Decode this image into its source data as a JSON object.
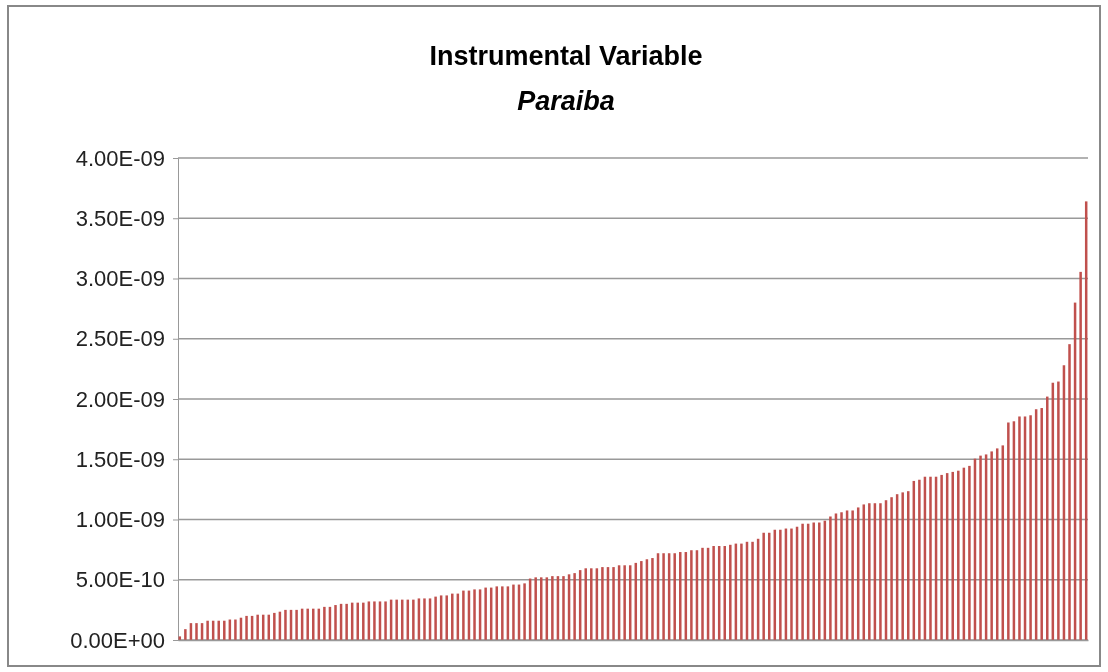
{
  "chart_data": {
    "type": "bar",
    "title": "Instrumental Variable",
    "subtitle": "Paraiba",
    "categories": [
      null,
      null,
      null,
      null,
      null,
      null,
      null,
      null,
      null,
      null,
      null,
      null,
      null,
      null,
      null,
      null,
      null,
      null,
      null,
      null,
      null,
      null,
      null,
      null,
      null,
      null,
      null,
      null,
      null,
      null,
      null,
      null,
      null,
      null,
      null,
      null,
      null,
      null,
      null,
      null,
      null,
      null,
      null,
      null,
      null,
      null,
      null,
      null,
      null,
      null,
      null,
      null,
      null,
      null,
      null,
      null,
      null,
      null,
      null,
      null,
      null,
      null,
      null,
      null,
      null,
      null,
      null,
      null,
      null,
      null,
      null,
      null,
      null,
      null,
      null,
      null,
      null,
      null,
      null,
      null,
      null,
      null,
      null,
      null,
      null,
      null,
      null,
      null,
      null,
      null,
      null,
      null,
      null,
      null,
      null,
      null,
      null,
      null,
      null,
      null,
      null,
      null,
      null,
      null,
      null,
      null,
      null,
      null,
      null,
      null,
      null,
      null,
      null,
      null,
      null,
      null,
      null,
      null,
      null,
      null,
      null,
      null,
      null,
      null,
      null,
      null,
      null,
      null,
      null,
      null,
      null,
      null,
      null,
      null,
      null,
      null,
      null,
      null,
      null,
      null,
      null,
      null,
      null,
      null,
      null,
      null,
      null,
      null,
      null,
      null,
      null,
      null,
      null,
      null,
      null,
      null,
      null,
      null,
      null,
      null,
      null,
      null,
      null,
      null
    ],
    "values": [
      3e-11,
      9e-11,
      1.4e-10,
      1.4e-10,
      1.4e-10,
      1.6e-10,
      1.6e-10,
      1.6e-10,
      1.6e-10,
      1.7e-10,
      1.7e-10,
      1.85e-10,
      2e-10,
      2e-10,
      2.1e-10,
      2.1e-10,
      2.1e-10,
      2.25e-10,
      2.35e-10,
      2.5e-10,
      2.5e-10,
      2.5e-10,
      2.6e-10,
      2.6e-10,
      2.6e-10,
      2.6e-10,
      2.75e-10,
      2.75e-10,
      2.9e-10,
      3e-10,
      3e-10,
      3.1e-10,
      3.1e-10,
      3.1e-10,
      3.2e-10,
      3.2e-10,
      3.2e-10,
      3.2e-10,
      3.35e-10,
      3.35e-10,
      3.35e-10,
      3.35e-10,
      3.35e-10,
      3.45e-10,
      3.45e-10,
      3.45e-10,
      3.6e-10,
      3.7e-10,
      3.7e-10,
      3.85e-10,
      3.85e-10,
      4.1e-10,
      4.1e-10,
      4.2e-10,
      4.2e-10,
      4.35e-10,
      4.35e-10,
      4.45e-10,
      4.45e-10,
      4.45e-10,
      4.6e-10,
      4.6e-10,
      4.7e-10,
      5.1e-10,
      5.2e-10,
      5.2e-10,
      5.2e-10,
      5.3e-10,
      5.3e-10,
      5.3e-10,
      5.45e-10,
      5.55e-10,
      5.8e-10,
      5.95e-10,
      5.95e-10,
      5.95e-10,
      6.05e-10,
      6.05e-10,
      6.05e-10,
      6.2e-10,
      6.2e-10,
      6.2e-10,
      6.4e-10,
      6.55e-10,
      6.7e-10,
      6.8e-10,
      7.2e-10,
      7.2e-10,
      7.2e-10,
      7.2e-10,
      7.3e-10,
      7.3e-10,
      7.45e-10,
      7.45e-10,
      7.65e-10,
      7.65e-10,
      7.8e-10,
      7.8e-10,
      7.8e-10,
      7.9e-10,
      8e-10,
      8e-10,
      8.15e-10,
      8.15e-10,
      8.4e-10,
      8.9e-10,
      8.9e-10,
      9.15e-10,
      9.15e-10,
      9.25e-10,
      9.25e-10,
      9.4e-10,
      9.65e-10,
      9.65e-10,
      9.75e-10,
      9.75e-10,
      9.9e-10,
      1.025e-09,
      1.05e-09,
      1.06e-09,
      1.075e-09,
      1.075e-09,
      1.1e-09,
      1.125e-09,
      1.135e-09,
      1.135e-09,
      1.135e-09,
      1.16e-09,
      1.185e-09,
      1.21e-09,
      1.225e-09,
      1.235e-09,
      1.32e-09,
      1.33e-09,
      1.355e-09,
      1.355e-09,
      1.355e-09,
      1.37e-09,
      1.385e-09,
      1.395e-09,
      1.405e-09,
      1.43e-09,
      1.445e-09,
      1.505e-09,
      1.53e-09,
      1.54e-09,
      1.565e-09,
      1.59e-09,
      1.615e-09,
      1.805e-09,
      1.815e-09,
      1.855e-09,
      1.855e-09,
      1.865e-09,
      1.915e-09,
      1.925e-09,
      2.02e-09,
      2.135e-09,
      2.145e-09,
      2.28e-09,
      2.455e-09,
      2.8e-09,
      3.055e-09,
      3.64e-09
    ],
    "color": "#c0504d",
    "ylim": [
      0,
      4e-09
    ],
    "yticks": [
      {
        "value": 0,
        "label": "0.00E+00"
      },
      {
        "value": 5e-10,
        "label": "5.00E-10"
      },
      {
        "value": 1e-09,
        "label": "1.00E-09"
      },
      {
        "value": 1.5e-09,
        "label": "1.50E-09"
      },
      {
        "value": 2e-09,
        "label": "2.00E-09"
      },
      {
        "value": 2.5e-09,
        "label": "2.50E-09"
      },
      {
        "value": 3e-09,
        "label": "3.00E-09"
      },
      {
        "value": 3.5e-09,
        "label": "3.50E-09"
      },
      {
        "value": 4e-09,
        "label": "4.00E-09"
      }
    ],
    "grid": "y"
  }
}
